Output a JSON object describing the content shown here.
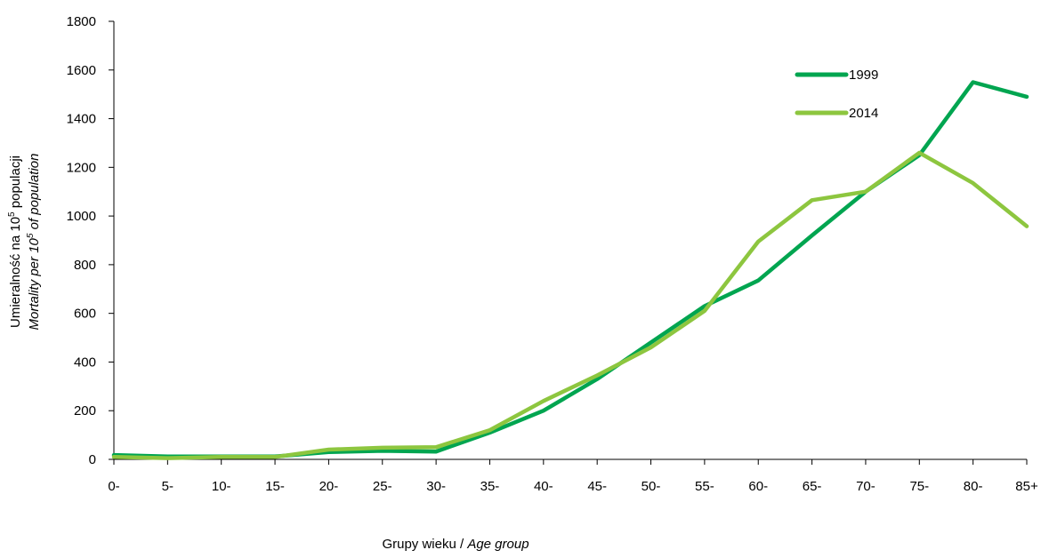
{
  "chart_data": {
    "type": "line",
    "categories": [
      "0-",
      "5-",
      "10-",
      "15-",
      "20-",
      "25-",
      "30-",
      "35-",
      "40-",
      "45-",
      "50-",
      "55-",
      "60-",
      "65-",
      "70-",
      "75-",
      "80-",
      "85+"
    ],
    "series": [
      {
        "name": "1999",
        "color": "#00a550",
        "values": [
          18,
          12,
          12,
          12,
          30,
          35,
          32,
          110,
          200,
          330,
          480,
          630,
          735,
          920,
          1100,
          1250,
          1550,
          1490
        ]
      },
      {
        "name": "2014",
        "color": "#8dc63f",
        "values": [
          10,
          5,
          10,
          10,
          40,
          48,
          50,
          120,
          240,
          345,
          460,
          610,
          895,
          1065,
          1100,
          1260,
          1135,
          958
        ]
      }
    ],
    "ylim": [
      0,
      1800
    ],
    "yticks": [
      0,
      200,
      400,
      600,
      800,
      1000,
      1200,
      1400,
      1600,
      1800
    ],
    "ylabel": {
      "line1_main": "Umieralność na 10",
      "line1_sup": "5",
      "line1_tail": " populacji",
      "line2_main": "Mortality per 10",
      "line2_sup": "5",
      "line2_tail": " of population"
    },
    "xlabel": {
      "main": "Grupy wieku / ",
      "italic": "Age group"
    },
    "legend_position": "top-right",
    "grid": false
  }
}
